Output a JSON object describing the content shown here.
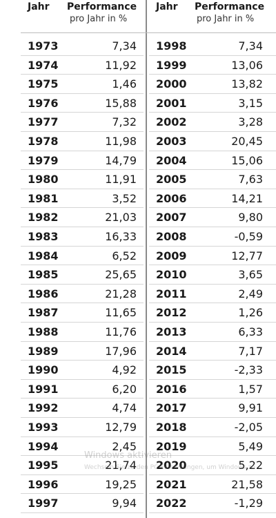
{
  "header": [
    {
      "year": "Jahr",
      "performance": "Performance",
      "unit": "pro Jahr in %"
    },
    {
      "year": "Jahr",
      "performance": "Performance",
      "unit": "pro Jahr in %"
    }
  ],
  "table": {
    "left": [
      [
        "1973",
        "7,34"
      ],
      [
        "1974",
        "11,92"
      ],
      [
        "1975",
        "1,46"
      ],
      [
        "1976",
        "15,88"
      ],
      [
        "1977",
        "7,32"
      ],
      [
        "1978",
        "11,98"
      ],
      [
        "1979",
        "14,79"
      ],
      [
        "1980",
        "11,91"
      ],
      [
        "1981",
        "3,52"
      ],
      [
        "1982",
        "21,03"
      ],
      [
        "1983",
        "16,33"
      ],
      [
        "1984",
        "6,52"
      ],
      [
        "1985",
        "25,65"
      ],
      [
        "1986",
        "21,28"
      ],
      [
        "1987",
        "11,65"
      ],
      [
        "1988",
        "11,76"
      ],
      [
        "1989",
        "17,96"
      ],
      [
        "1990",
        "4,92"
      ],
      [
        "1991",
        "6,20"
      ],
      [
        "1992",
        "4,74"
      ],
      [
        "1993",
        "12,79"
      ],
      [
        "1994",
        "2,45"
      ],
      [
        "1995",
        "21,74"
      ],
      [
        "1996",
        "19,25"
      ],
      [
        "1997",
        "9,94"
      ]
    ],
    "right": [
      [
        "1998",
        "7,34"
      ],
      [
        "1999",
        "13,06"
      ],
      [
        "2000",
        "13,82"
      ],
      [
        "2001",
        "3,15"
      ],
      [
        "2002",
        "3,28"
      ],
      [
        "2003",
        "20,45"
      ],
      [
        "2004",
        "15,06"
      ],
      [
        "2005",
        "7,63"
      ],
      [
        "2006",
        "14,21"
      ],
      [
        "2007",
        "9,80"
      ],
      [
        "2008",
        "-0,59"
      ],
      [
        "2009",
        "12,77"
      ],
      [
        "2010",
        "3,65"
      ],
      [
        "2011",
        "2,49"
      ],
      [
        "2012",
        "1,26"
      ],
      [
        "2013",
        "6,33"
      ],
      [
        "2014",
        "7,17"
      ],
      [
        "2015",
        "-2,33"
      ],
      [
        "2016",
        "1,57"
      ],
      [
        "2017",
        "9,91"
      ],
      [
        "2018",
        "-2,05"
      ],
      [
        "2019",
        "5,49"
      ],
      [
        "2020",
        "5,22"
      ],
      [
        "2021",
        "21,58"
      ],
      [
        "2022",
        "-1,29"
      ]
    ]
  },
  "watermark": {
    "title": "Windows aktivieren",
    "text": "Wechseln Sie zu den PC-Einstellungen, um Windows zu"
  }
}
